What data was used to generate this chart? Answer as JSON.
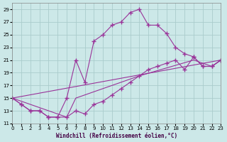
{
  "xlabel": "Windchill (Refroidissement éolien,°C)",
  "background_color": "#cce8e8",
  "grid_color": "#aacccc",
  "line_color": "#993399",
  "xlim": [
    0,
    23
  ],
  "ylim": [
    11,
    30
  ],
  "xticks": [
    0,
    1,
    2,
    3,
    4,
    5,
    6,
    7,
    8,
    9,
    10,
    11,
    12,
    13,
    14,
    15,
    16,
    17,
    18,
    19,
    20,
    21,
    22,
    23
  ],
  "yticks": [
    11,
    13,
    15,
    17,
    19,
    21,
    23,
    25,
    27,
    29
  ],
  "curve1_x": [
    0,
    1,
    2,
    3,
    4,
    5,
    6,
    7,
    8,
    9,
    10,
    11,
    12,
    13,
    14,
    15,
    16,
    17,
    18,
    19,
    20,
    21,
    22,
    23
  ],
  "curve1_y": [
    15,
    14,
    13,
    13,
    12,
    12,
    15,
    21,
    17.5,
    24,
    25,
    26.5,
    27,
    28.5,
    29,
    26.5,
    26.5,
    25.2,
    23,
    22,
    21.5,
    20,
    20,
    21
  ],
  "curve2_x": [
    0,
    1,
    2,
    3,
    4,
    5,
    6,
    7,
    8,
    9,
    10,
    11,
    12,
    13,
    14,
    15,
    16,
    17,
    18,
    19,
    20,
    21,
    22,
    23
  ],
  "curve2_y": [
    15,
    14,
    13,
    13,
    12,
    12,
    12,
    13,
    12.5,
    14,
    14.5,
    15.5,
    16.5,
    17.5,
    18.5,
    19.5,
    20,
    20.5,
    21,
    19.5,
    21.5,
    20,
    20,
    21
  ],
  "curve3_x": [
    0,
    23
  ],
  "curve3_y": [
    15,
    21
  ],
  "curve4_x": [
    0,
    6,
    7,
    14,
    20,
    22,
    23
  ],
  "curve4_y": [
    15,
    12,
    15,
    18.5,
    21,
    20,
    21
  ]
}
